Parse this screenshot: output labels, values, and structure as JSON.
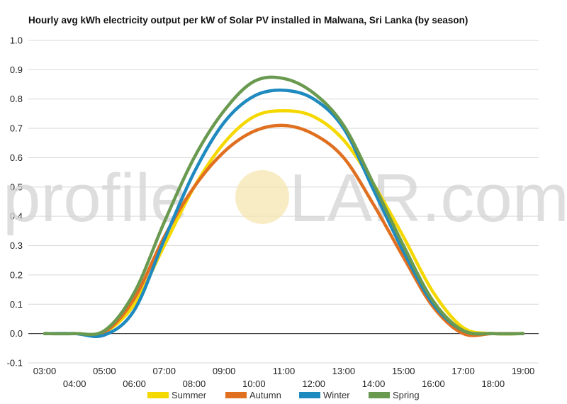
{
  "chart_data": {
    "type": "line",
    "title": "Hourly avg kWh electricity output per kW of Solar PV installed in Malwana, Sri Lanka (by season)",
    "xlabel": "",
    "ylabel": "",
    "x": [
      "03:00",
      "04:00",
      "05:00",
      "06:00",
      "07:00",
      "08:00",
      "09:00",
      "10:00",
      "11:00",
      "12:00",
      "13:00",
      "14:00",
      "15:00",
      "16:00",
      "17:00",
      "18:00",
      "19:00"
    ],
    "ylim": [
      -0.1,
      1.0
    ],
    "yticks": [
      "1.0",
      "0.9",
      "0.8",
      "0.7",
      "0.6",
      "0.5",
      "0.4",
      "0.3",
      "0.2",
      "0.1",
      "0.0",
      "-0.1"
    ],
    "grid": true,
    "legend_position": "bottom",
    "series": [
      {
        "name": "Summer",
        "color": "#f5d800",
        "values": [
          0.0,
          0.0,
          0.005,
          0.1,
          0.3,
          0.5,
          0.65,
          0.74,
          0.76,
          0.74,
          0.66,
          0.51,
          0.33,
          0.14,
          0.02,
          0.0,
          0.0
        ]
      },
      {
        "name": "Autumn",
        "color": "#e07020",
        "values": [
          0.0,
          0.0,
          0.005,
          0.12,
          0.33,
          0.5,
          0.62,
          0.69,
          0.71,
          0.68,
          0.6,
          0.44,
          0.26,
          0.09,
          0.0,
          0.0,
          0.0
        ]
      },
      {
        "name": "Winter",
        "color": "#1f8ac0",
        "values": [
          0.0,
          0.0,
          -0.005,
          0.08,
          0.32,
          0.55,
          0.72,
          0.81,
          0.83,
          0.8,
          0.7,
          0.49,
          0.28,
          0.1,
          0.01,
          0.0,
          0.0
        ]
      },
      {
        "name": "Spring",
        "color": "#6a9a50",
        "values": [
          0.0,
          0.0,
          0.01,
          0.14,
          0.38,
          0.6,
          0.76,
          0.86,
          0.87,
          0.82,
          0.71,
          0.51,
          0.3,
          0.11,
          0.01,
          0.0,
          0.0
        ]
      }
    ]
  },
  "watermark": {
    "left": "profile",
    "right": "LAR.com"
  }
}
